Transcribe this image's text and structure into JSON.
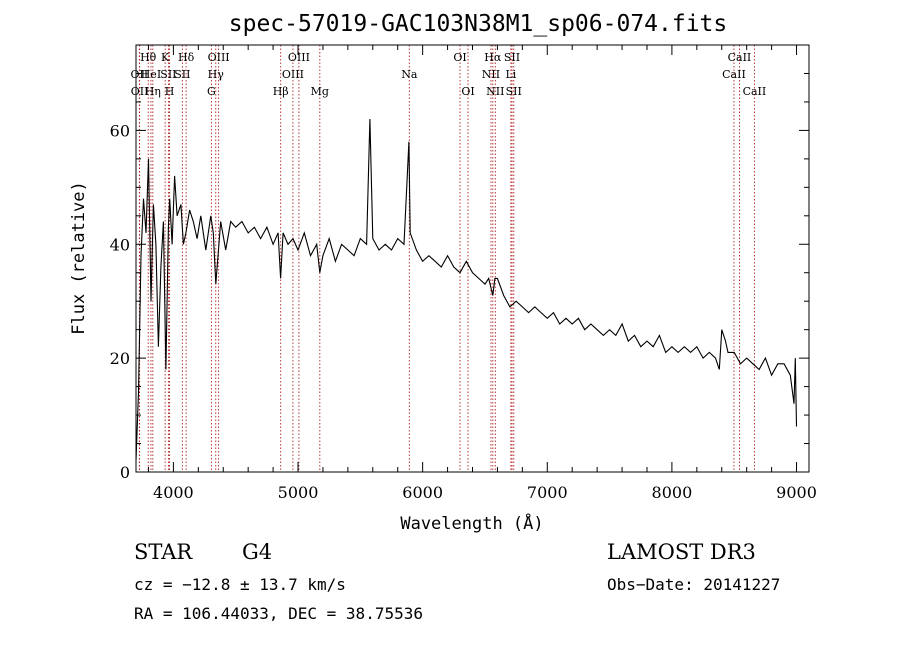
{
  "chart_data": {
    "type": "line",
    "title": "spec-57019-GAC103N38M1_sp06-074.fits",
    "xlabel": "Wavelength (Å)",
    "ylabel": "Flux (relative)",
    "xlim": [
      3700,
      9100
    ],
    "ylim": [
      0,
      75
    ],
    "xticks": [
      4000,
      5000,
      6000,
      7000,
      8000,
      9000
    ],
    "yticks": [
      0,
      20,
      40,
      60
    ],
    "grid": false,
    "line_color": "#000000",
    "marker_color": "#b22222",
    "series": [
      {
        "name": "spectrum",
        "x": [
          3700,
          3720,
          3740,
          3760,
          3780,
          3800,
          3820,
          3840,
          3860,
          3880,
          3900,
          3920,
          3940,
          3960,
          3970,
          3990,
          4010,
          4030,
          4060,
          4080,
          4100,
          4130,
          4160,
          4190,
          4220,
          4260,
          4300,
          4320,
          4340,
          4380,
          4420,
          4460,
          4500,
          4550,
          4600,
          4650,
          4700,
          4750,
          4800,
          4840,
          4860,
          4880,
          4920,
          4960,
          5000,
          5050,
          5100,
          5150,
          5175,
          5200,
          5250,
          5300,
          5350,
          5400,
          5450,
          5500,
          5550,
          5577,
          5600,
          5650,
          5700,
          5750,
          5800,
          5850,
          5890,
          5900,
          5950,
          6000,
          6050,
          6100,
          6150,
          6200,
          6250,
          6300,
          6350,
          6400,
          6450,
          6500,
          6530,
          6563,
          6580,
          6600,
          6650,
          6700,
          6750,
          6800,
          6850,
          6900,
          6950,
          7000,
          7050,
          7100,
          7150,
          7200,
          7250,
          7300,
          7350,
          7400,
          7450,
          7500,
          7550,
          7600,
          7650,
          7700,
          7750,
          7800,
          7850,
          7900,
          7950,
          8000,
          8050,
          8100,
          8150,
          8200,
          8250,
          8300,
          8350,
          8380,
          8400,
          8430,
          8450,
          8500,
          8550,
          8600,
          8650,
          8700,
          8750,
          8800,
          8850,
          8900,
          8950,
          8980,
          8990,
          9000
        ],
        "y": [
          2,
          14,
          38,
          48,
          42,
          55,
          30,
          47,
          40,
          22,
          36,
          44,
          18,
          43,
          48,
          40,
          52,
          45,
          47,
          40,
          42,
          46,
          44,
          41,
          45,
          39,
          45,
          42,
          33,
          44,
          39,
          44,
          43,
          44,
          42,
          43,
          41,
          43,
          40,
          42,
          34,
          42,
          40,
          41,
          39,
          42,
          38,
          40,
          35,
          38,
          41,
          37,
          40,
          39,
          38,
          41,
          40,
          62,
          41,
          39,
          40,
          39,
          41,
          40,
          58,
          42,
          39,
          37,
          38,
          37,
          36,
          38,
          36,
          35,
          37,
          35,
          34,
          33,
          34,
          31,
          34,
          34,
          31,
          29,
          30,
          29,
          28,
          29,
          28,
          27,
          28,
          26,
          27,
          26,
          27,
          25,
          26,
          25,
          24,
          25,
          24,
          26,
          23,
          24,
          22,
          23,
          22,
          24,
          21,
          22,
          21,
          22,
          21,
          22,
          20,
          21,
          20,
          18,
          25,
          23,
          21,
          21,
          19,
          20,
          19,
          18,
          20,
          17,
          19,
          19,
          17,
          12,
          20,
          8
        ]
      }
    ],
    "spectral_lines": [
      {
        "label": "OII",
        "x": 3727,
        "row": 1
      },
      {
        "label": "OII",
        "x": 3729,
        "row": 2
      },
      {
        "label": "Hθ",
        "x": 3798,
        "row": 0
      },
      {
        "label": "HeI",
        "x": 3820,
        "row": 1
      },
      {
        "label": "Hη",
        "x": 3835,
        "row": 2
      },
      {
        "label": "K",
        "x": 3934,
        "row": 0
      },
      {
        "label": "SII",
        "x": 3960,
        "row": 1
      },
      {
        "label": "H",
        "x": 3969,
        "row": 2
      },
      {
        "label": "Hδ",
        "x": 4102,
        "row": 0
      },
      {
        "label": "SII",
        "x": 4072,
        "row": 1
      },
      {
        "label": "G",
        "x": 4305,
        "row": 2
      },
      {
        "label": "OIII",
        "x": 4363,
        "row": 0
      },
      {
        "label": "Hγ",
        "x": 4340,
        "row": 1
      },
      {
        "label": "Hβ",
        "x": 4861,
        "row": 2
      },
      {
        "label": "OIII",
        "x": 5007,
        "row": 0
      },
      {
        "label": "OIII",
        "x": 4959,
        "row": 1
      },
      {
        "label": "Mg",
        "x": 5175,
        "row": 2
      },
      {
        "label": "Na",
        "x": 5893,
        "row": 1
      },
      {
        "label": "OI",
        "x": 6300,
        "row": 0
      },
      {
        "label": "OI",
        "x": 6364,
        "row": 2
      },
      {
        "label": "Hα",
        "x": 6563,
        "row": 0
      },
      {
        "label": "NII",
        "x": 6548,
        "row": 1
      },
      {
        "label": "NII",
        "x": 6583,
        "row": 2
      },
      {
        "label": "SII",
        "x": 6717,
        "row": 0
      },
      {
        "label": "Li",
        "x": 6708,
        "row": 1
      },
      {
        "label": "SII",
        "x": 6731,
        "row": 2
      },
      {
        "label": "CaII",
        "x": 8542,
        "row": 0
      },
      {
        "label": "CaII",
        "x": 8498,
        "row": 1
      },
      {
        "label": "CaII",
        "x": 8662,
        "row": 2
      }
    ]
  },
  "footer": {
    "object_class": "STAR",
    "subclass": "G4",
    "survey": "LAMOST DR3",
    "cz": "cz = −12.8 ± 13.7 km/s",
    "obs_date": "Obs−Date: 20141227",
    "coords": "RA = 106.44033, DEC =  38.75536"
  }
}
